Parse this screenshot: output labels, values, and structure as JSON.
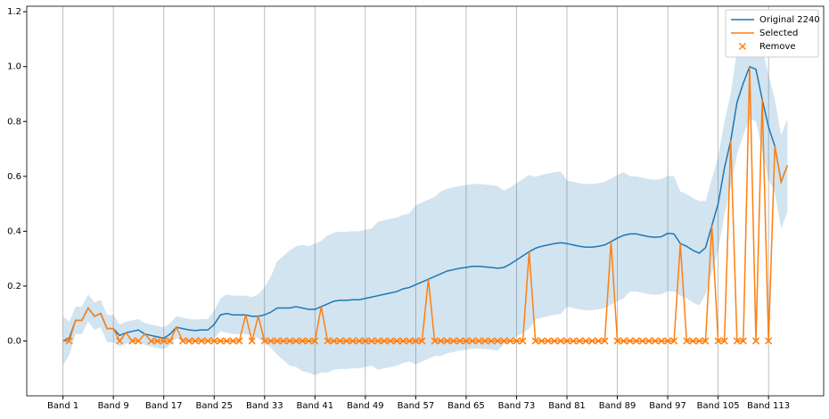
{
  "chart_data": {
    "type": "line",
    "categories": [
      "Band 1",
      null,
      null,
      null,
      null,
      null,
      null,
      null,
      "Band 9",
      null,
      null,
      null,
      null,
      null,
      null,
      null,
      "Band 17",
      null,
      null,
      null,
      null,
      null,
      null,
      null,
      "Band 25",
      null,
      null,
      null,
      null,
      null,
      null,
      null,
      "Band 33",
      null,
      null,
      null,
      null,
      null,
      null,
      null,
      "Band 41",
      null,
      null,
      null,
      null,
      null,
      null,
      null,
      "Band 49",
      null,
      null,
      null,
      null,
      null,
      null,
      null,
      "Band 57",
      null,
      null,
      null,
      null,
      null,
      null,
      null,
      "Band 65",
      null,
      null,
      null,
      null,
      null,
      null,
      null,
      "Band 73",
      null,
      null,
      null,
      null,
      null,
      null,
      null,
      "Band 81",
      null,
      null,
      null,
      null,
      null,
      null,
      null,
      "Band 89",
      null,
      null,
      null,
      null,
      null,
      null,
      null,
      "Band 97",
      null,
      null,
      null,
      null,
      null,
      null,
      null,
      "Band 105",
      null,
      null,
      null,
      null,
      null,
      null,
      null,
      "Band 113",
      null,
      null,
      null
    ],
    "series": [
      {
        "name": "Original 2240",
        "color": "#1f77b4",
        "values": [
          0,
          0.01,
          0.075,
          0.075,
          0.12,
          0.09,
          0.1,
          0.045,
          0.045,
          0.02,
          0.03,
          0.035,
          0.04,
          0.025,
          0.02,
          0.015,
          0.01,
          0.025,
          0.05,
          0.045,
          0.04,
          0.038,
          0.04,
          0.04,
          0.06,
          0.095,
          0.1,
          0.095,
          0.095,
          0.095,
          0.09,
          0.09,
          0.095,
          0.105,
          0.12,
          0.12,
          0.12,
          0.125,
          0.12,
          0.115,
          0.115,
          0.125,
          0.135,
          0.145,
          0.148,
          0.148,
          0.15,
          0.15,
          0.155,
          0.16,
          0.165,
          0.17,
          0.175,
          0.18,
          0.19,
          0.195,
          0.205,
          0.215,
          0.225,
          0.235,
          0.245,
          0.255,
          0.26,
          0.265,
          0.268,
          0.272,
          0.272,
          0.27,
          0.268,
          0.265,
          0.268,
          0.28,
          0.295,
          0.31,
          0.325,
          0.338,
          0.345,
          0.35,
          0.355,
          0.358,
          0.355,
          0.35,
          0.345,
          0.342,
          0.342,
          0.345,
          0.35,
          0.362,
          0.375,
          0.385,
          0.39,
          0.39,
          0.385,
          0.38,
          0.378,
          0.38,
          0.392,
          0.39,
          0.355,
          0.345,
          0.33,
          0.32,
          0.34,
          0.42,
          0.5,
          0.63,
          0.73,
          0.87,
          0.94,
          1.0,
          0.99,
          0.88,
          0.78,
          0.71,
          0.58,
          0.64
        ],
        "std": [
          0.09,
          0.06,
          0.05,
          0.05,
          0.05,
          0.05,
          0.05,
          0.05,
          0.05,
          0.04,
          0.04,
          0.04,
          0.04,
          0.04,
          0.04,
          0.04,
          0.04,
          0.04,
          0.04,
          0.04,
          0.04,
          0.04,
          0.04,
          0.04,
          0.05,
          0.06,
          0.07,
          0.07,
          0.07,
          0.07,
          0.07,
          0.08,
          0.1,
          0.13,
          0.17,
          0.19,
          0.21,
          0.22,
          0.23,
          0.23,
          0.24,
          0.24,
          0.25,
          0.25,
          0.25,
          0.25,
          0.25,
          0.25,
          0.25,
          0.25,
          0.27,
          0.27,
          0.27,
          0.27,
          0.27,
          0.27,
          0.29,
          0.29,
          0.29,
          0.29,
          0.3,
          0.3,
          0.3,
          0.3,
          0.3,
          0.3,
          0.3,
          0.3,
          0.3,
          0.3,
          0.28,
          0.28,
          0.28,
          0.28,
          0.28,
          0.26,
          0.26,
          0.26,
          0.26,
          0.26,
          0.23,
          0.23,
          0.23,
          0.23,
          0.23,
          0.23,
          0.23,
          0.23,
          0.23,
          0.23,
          0.21,
          0.21,
          0.21,
          0.21,
          0.21,
          0.21,
          0.21,
          0.21,
          0.19,
          0.19,
          0.19,
          0.19,
          0.17,
          0.17,
          0.17,
          0.17,
          0.17,
          0.19,
          0.19,
          0.19,
          0.19,
          0.19,
          0.19,
          0.17,
          0.17,
          0.17
        ]
      },
      {
        "name": "Selected",
        "color": "#ff7f0e",
        "values": [
          0,
          0,
          0.075,
          0.075,
          0.12,
          0.09,
          0.1,
          0.045,
          0.045,
          0,
          0.03,
          0,
          0,
          0.025,
          0,
          0,
          0,
          0,
          0.05,
          0,
          0,
          0,
          0,
          0,
          0,
          0,
          0,
          0,
          0,
          0.095,
          0,
          0.09,
          0,
          0,
          0,
          0,
          0,
          0,
          0,
          0,
          0,
          0.125,
          0,
          0,
          0,
          0,
          0,
          0,
          0,
          0,
          0,
          0,
          0,
          0,
          0,
          0,
          0,
          0,
          0.225,
          0,
          0,
          0,
          0,
          0,
          0,
          0,
          0,
          0,
          0,
          0,
          0,
          0,
          0,
          0,
          0.325,
          0,
          0,
          0,
          0,
          0,
          0,
          0,
          0,
          0,
          0,
          0,
          0,
          0.362,
          0,
          0,
          0,
          0,
          0,
          0,
          0,
          0,
          0,
          0,
          0.355,
          0,
          0,
          0,
          0,
          0.42,
          0,
          0,
          0.73,
          0,
          0,
          1.0,
          0,
          0.88,
          0,
          0.71,
          0.58,
          0.64
        ]
      },
      {
        "name": "Remove",
        "color": "#ff7f0e",
        "marker": "x",
        "values": [
          null,
          0,
          null,
          null,
          null,
          null,
          null,
          null,
          null,
          0,
          null,
          0,
          0,
          null,
          0,
          0,
          0,
          0,
          null,
          0,
          0,
          0,
          0,
          0,
          0,
          0,
          0,
          0,
          0,
          null,
          0,
          null,
          0,
          0,
          0,
          0,
          0,
          0,
          0,
          0,
          0,
          null,
          0,
          0,
          0,
          0,
          0,
          0,
          0,
          0,
          0,
          0,
          0,
          0,
          0,
          0,
          0,
          0,
          null,
          0,
          0,
          0,
          0,
          0,
          0,
          0,
          0,
          0,
          0,
          0,
          0,
          0,
          0,
          0,
          null,
          0,
          0,
          0,
          0,
          0,
          0,
          0,
          0,
          0,
          0,
          0,
          0,
          null,
          0,
          0,
          0,
          0,
          0,
          0,
          0,
          0,
          0,
          0,
          null,
          0,
          0,
          0,
          0,
          null,
          0,
          0,
          null,
          0,
          0,
          null,
          0,
          null,
          0,
          null,
          null,
          null
        ]
      }
    ],
    "ylim": [
      -0.2,
      1.22
    ],
    "yticks": [
      {
        "value": 0,
        "label": "0.0"
      },
      {
        "value": 0.2,
        "label": "0.2"
      },
      {
        "value": 0.4,
        "label": "0.4"
      },
      {
        "value": 0.6,
        "label": "0.6"
      },
      {
        "value": 0.8,
        "label": "0.8"
      },
      {
        "value": 1.0,
        "label": "1.0"
      },
      {
        "value": 1.2,
        "label": "1.2"
      }
    ],
    "grid": "x",
    "legend": "upper right"
  }
}
